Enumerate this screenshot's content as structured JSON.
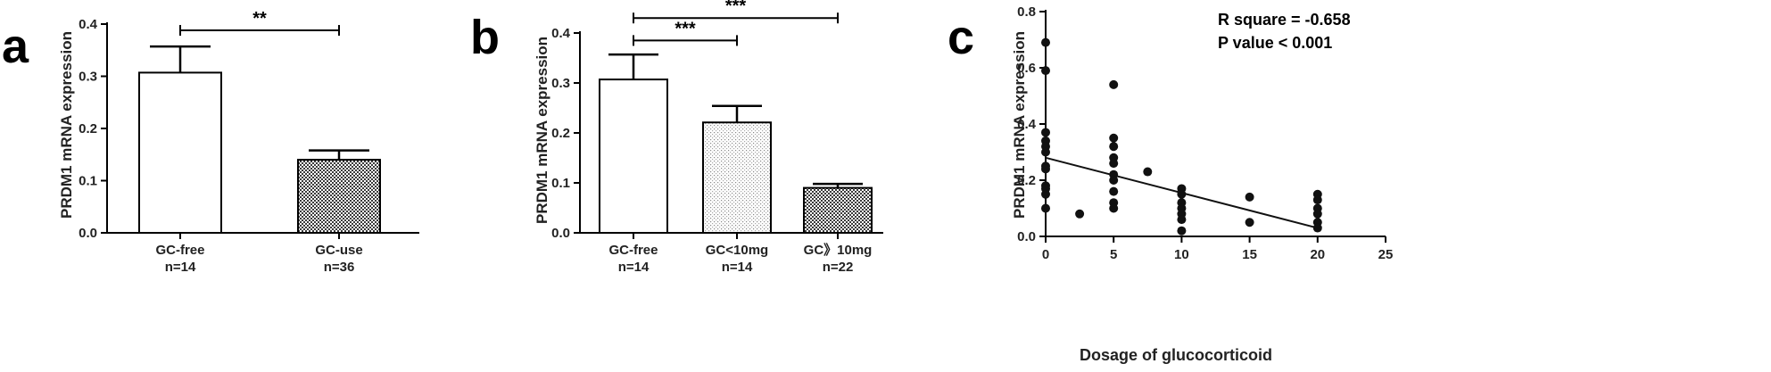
{
  "chart_data": [
    {
      "panel": "a",
      "type": "bar",
      "ylabel": "PRDM1 mRNA expression",
      "ylim": [
        0,
        0.4
      ],
      "yticks": [
        "0.0",
        "0.1",
        "0.2",
        "0.3",
        "0.4"
      ],
      "categories": [
        "GC-free",
        "GC-use"
      ],
      "n_labels": [
        "n=14",
        "n=36"
      ],
      "values": [
        0.307,
        0.14
      ],
      "errors": [
        0.05,
        0.018
      ],
      "fills": [
        "white",
        "dense-dots"
      ],
      "significance": [
        {
          "from": 0,
          "to": 1,
          "label": "**",
          "y": 0.388
        }
      ]
    },
    {
      "panel": "b",
      "type": "bar",
      "ylabel": "PRDM1 mRNA expression",
      "ylim": [
        0,
        0.4
      ],
      "yticks": [
        "0.0",
        "0.1",
        "0.2",
        "0.3",
        "0.4"
      ],
      "categories": [
        "GC-free",
        "GC<10mg",
        "GC》10mg"
      ],
      "n_labels": [
        "n=14",
        "n=14",
        "n=22"
      ],
      "values": [
        0.307,
        0.221,
        0.09
      ],
      "errors": [
        0.05,
        0.033,
        0.008
      ],
      "fills": [
        "white",
        "light-dots",
        "dense-dots"
      ],
      "significance": [
        {
          "from": 0,
          "to": 1,
          "label": "***",
          "y": 0.385
        },
        {
          "from": 0,
          "to": 2,
          "label": "***",
          "y": 0.43
        }
      ]
    },
    {
      "panel": "c",
      "type": "scatter",
      "ylabel": "PRDM1 mRNA expression",
      "xlabel": "Dosage of glucocorticoid",
      "xlim": [
        0,
        25
      ],
      "ylim": [
        0,
        0.8
      ],
      "xticks": [
        "0",
        "5",
        "10",
        "15",
        "20",
        "25"
      ],
      "yticks": [
        "0.0",
        "0.2",
        "0.4",
        "0.6",
        "0.8"
      ],
      "annotations": [
        "R square = -0.658",
        "P value < 0.001"
      ],
      "fit_line": {
        "x": [
          0,
          20
        ],
        "y": [
          0.28,
          0.03
        ]
      },
      "points": [
        [
          0,
          0.69
        ],
        [
          0,
          0.59
        ],
        [
          0,
          0.37
        ],
        [
          0,
          0.34
        ],
        [
          0,
          0.32
        ],
        [
          0,
          0.3
        ],
        [
          0,
          0.25
        ],
        [
          0,
          0.24
        ],
        [
          0,
          0.18
        ],
        [
          0,
          0.17
        ],
        [
          0,
          0.15
        ],
        [
          0,
          0.1
        ],
        [
          2.5,
          0.08
        ],
        [
          5,
          0.54
        ],
        [
          5,
          0.35
        ],
        [
          5,
          0.32
        ],
        [
          5,
          0.28
        ],
        [
          5,
          0.26
        ],
        [
          5,
          0.22
        ],
        [
          5,
          0.2
        ],
        [
          5,
          0.16
        ],
        [
          5,
          0.12
        ],
        [
          5,
          0.1
        ],
        [
          7.5,
          0.23
        ],
        [
          10,
          0.17
        ],
        [
          10,
          0.15
        ],
        [
          10,
          0.12
        ],
        [
          10,
          0.1
        ],
        [
          10,
          0.08
        ],
        [
          10,
          0.06
        ],
        [
          10,
          0.02
        ],
        [
          15,
          0.14
        ],
        [
          15,
          0.05
        ],
        [
          20,
          0.15
        ],
        [
          20,
          0.13
        ],
        [
          20,
          0.1
        ],
        [
          20,
          0.08
        ],
        [
          20,
          0.05
        ],
        [
          20,
          0.03
        ]
      ]
    }
  ]
}
